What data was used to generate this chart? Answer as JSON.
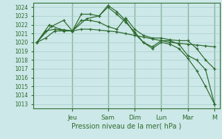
{
  "background_color": "#cce8e8",
  "grid_color": "#aacccc",
  "line_color": "#2d6a2d",
  "ylabel_ticks": [
    1013,
    1014,
    1015,
    1016,
    1017,
    1018,
    1019,
    1020,
    1021,
    1022,
    1023,
    1024
  ],
  "xlabel": "Pression niveau de la mer( hPa )",
  "x_day_labels": [
    "Jeu",
    "Sam",
    "Dim",
    "Lun",
    "Mar",
    "M"
  ],
  "x_day_positions": [
    2.0,
    4.0,
    5.5,
    7.0,
    8.5,
    10.0
  ],
  "series": [
    {
      "x": [
        0.0,
        0.5,
        1.0,
        1.5,
        2.0,
        2.5,
        3.0,
        3.5,
        4.0,
        4.5,
        5.0,
        5.5,
        6.0,
        6.5,
        7.0,
        7.5,
        8.0,
        8.5,
        9.0,
        9.5,
        10.0
      ],
      "y": [
        1020.0,
        1020.5,
        1021.3,
        1021.3,
        1021.3,
        1021.5,
        1021.5,
        1021.4,
        1021.3,
        1021.2,
        1021.0,
        1020.8,
        1020.6,
        1020.4,
        1020.2,
        1020.0,
        1019.9,
        1019.8,
        1019.7,
        1019.6,
        1019.5
      ],
      "marker": "+"
    },
    {
      "x": [
        0.0,
        0.7,
        1.3,
        2.0,
        2.5,
        3.0,
        3.5,
        4.0,
        4.5,
        5.0,
        5.5,
        6.0,
        6.5,
        7.0,
        7.5,
        8.0,
        8.5,
        9.0,
        9.5,
        10.0
      ],
      "y": [
        1020.0,
        1022.0,
        1021.5,
        1021.3,
        1023.2,
        1023.2,
        1023.0,
        1024.0,
        1023.2,
        1022.3,
        1021.2,
        1020.0,
        1019.3,
        1020.0,
        1019.8,
        1019.3,
        1018.2,
        1016.8,
        1015.0,
        1013.0
      ],
      "marker": "+"
    },
    {
      "x": [
        0.0,
        0.5,
        1.0,
        1.5,
        2.0,
        2.5,
        3.0,
        3.5,
        4.0,
        4.5,
        5.0,
        5.5,
        6.0,
        6.5,
        7.0,
        7.5,
        8.0,
        8.5,
        9.0,
        9.5,
        10.0
      ],
      "y": [
        1020.0,
        1021.3,
        1021.5,
        1021.4,
        1021.3,
        1022.5,
        1022.5,
        1022.3,
        1021.8,
        1021.5,
        1022.8,
        1021.5,
        1020.8,
        1020.5,
        1020.5,
        1020.3,
        1020.2,
        1020.2,
        1019.3,
        1018.0,
        1017.0
      ],
      "marker": "+"
    },
    {
      "x": [
        0.0,
        0.8,
        1.5,
        2.0,
        2.8,
        3.5,
        4.0,
        4.5,
        5.0,
        5.5,
        6.0,
        6.5,
        7.0,
        7.5,
        8.0,
        8.5,
        9.0,
        9.5,
        10.0
      ],
      "y": [
        1020.0,
        1021.8,
        1022.5,
        1021.3,
        1022.7,
        1023.0,
        1024.2,
        1023.5,
        1022.5,
        1021.0,
        1020.0,
        1019.5,
        1020.2,
        1020.2,
        1019.8,
        1018.5,
        1018.0,
        1016.9,
        1013.0
      ],
      "marker": "+"
    }
  ],
  "ylim": [
    1012.5,
    1024.5
  ],
  "xlim": [
    -0.2,
    10.3
  ],
  "figsize": [
    3.2,
    2.0
  ],
  "dpi": 100
}
